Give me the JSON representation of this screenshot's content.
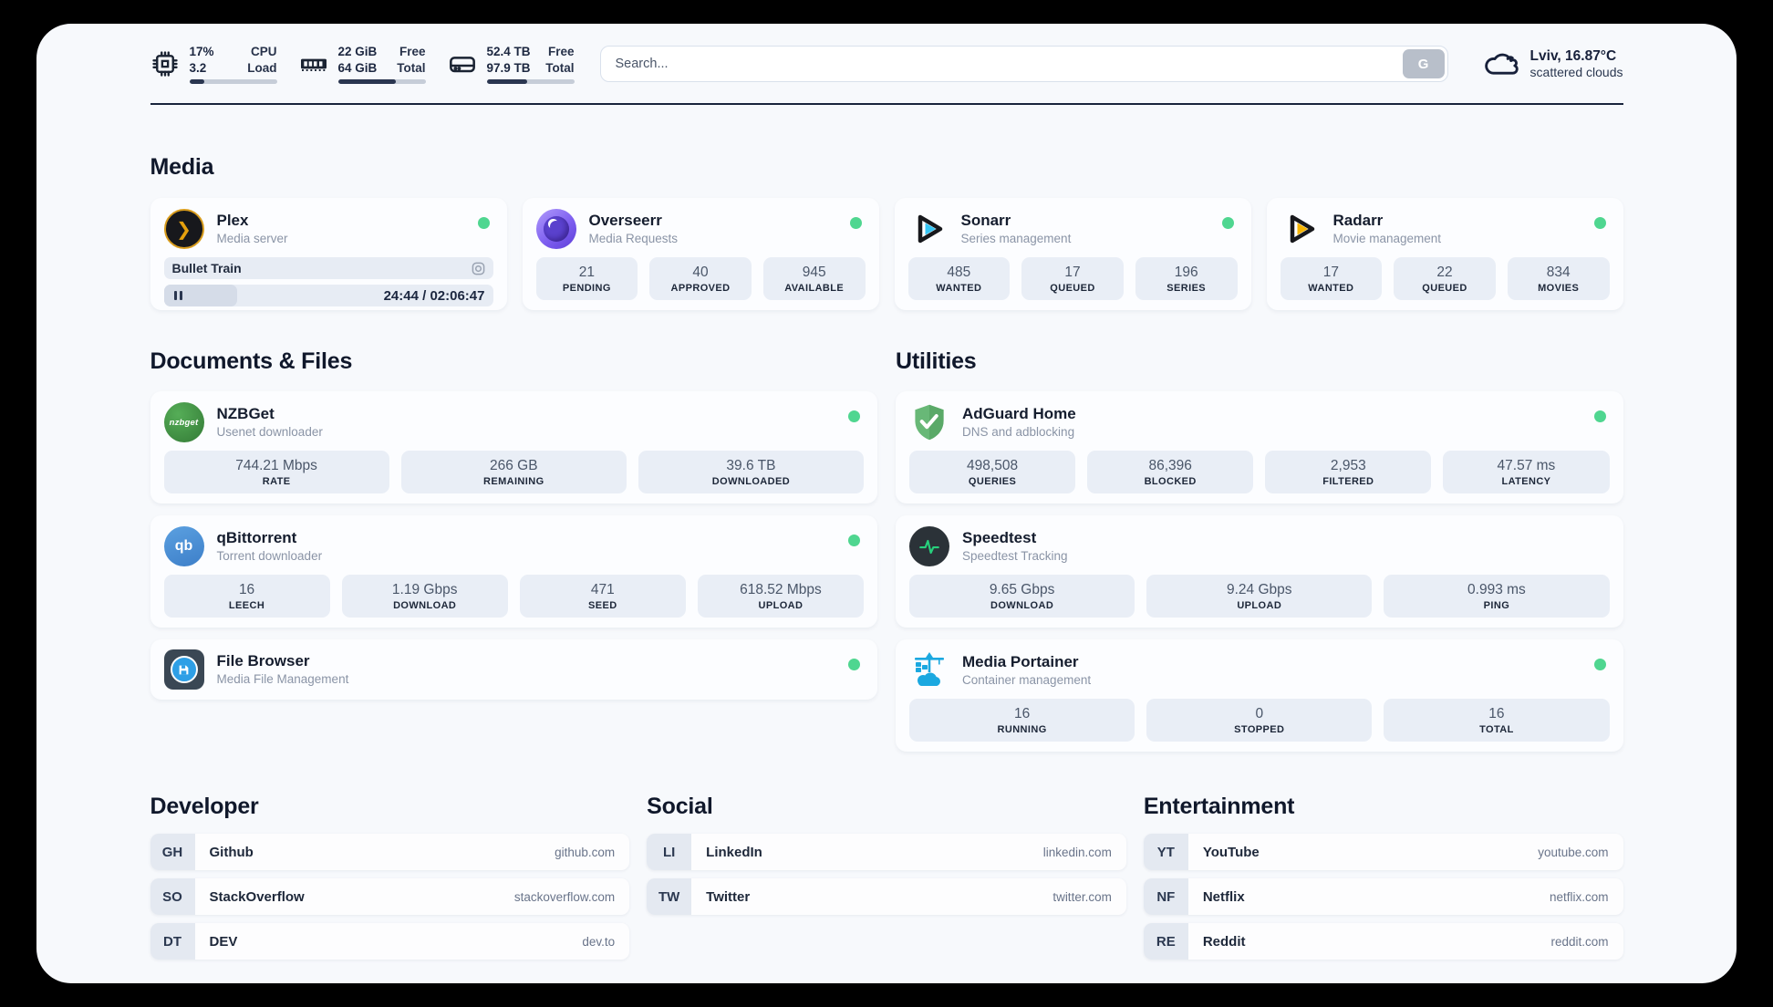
{
  "header": {
    "stats": {
      "cpu": {
        "value1": "17%",
        "value2": "3.2",
        "label1": "CPU",
        "label2": "Load",
        "progress": 17
      },
      "memory": {
        "value1": "22 GiB",
        "value2": "64 GiB",
        "label1": "Free",
        "label2": "Total",
        "progress": 66
      },
      "storage": {
        "value1": "52.4 TB",
        "value2": "97.9 TB",
        "label1": "Free",
        "label2": "Total",
        "progress": 46
      }
    },
    "search": {
      "placeholder": "Search...",
      "button_label": "G"
    },
    "weather": {
      "summary": "Lviv, 16.87°C",
      "description": "scattered clouds"
    }
  },
  "sections": {
    "media": {
      "title": "Media"
    },
    "documents": {
      "title": "Documents & Files"
    },
    "utilities": {
      "title": "Utilities"
    },
    "developer": {
      "title": "Developer"
    },
    "social": {
      "title": "Social"
    },
    "entertainment": {
      "title": "Entertainment"
    }
  },
  "apps": {
    "plex": {
      "name": "Plex",
      "subtitle": "Media server",
      "now_playing": "Bullet Train",
      "time": "24:44 / 02:06:47"
    },
    "overseerr": {
      "name": "Overseerr",
      "subtitle": "Media Requests",
      "stats": [
        {
          "value": "21",
          "label": "PENDING"
        },
        {
          "value": "40",
          "label": "APPROVED"
        },
        {
          "value": "945",
          "label": "AVAILABLE"
        }
      ]
    },
    "sonarr": {
      "name": "Sonarr",
      "subtitle": "Series management",
      "stats": [
        {
          "value": "485",
          "label": "WANTED"
        },
        {
          "value": "17",
          "label": "QUEUED"
        },
        {
          "value": "196",
          "label": "SERIES"
        }
      ]
    },
    "radarr": {
      "name": "Radarr",
      "subtitle": "Movie management",
      "stats": [
        {
          "value": "17",
          "label": "WANTED"
        },
        {
          "value": "22",
          "label": "QUEUED"
        },
        {
          "value": "834",
          "label": "MOVIES"
        }
      ]
    },
    "nzbget": {
      "name": "NZBGet",
      "subtitle": "Usenet downloader",
      "icon_text": "nzbget",
      "stats": [
        {
          "value": "744.21 Mbps",
          "label": "RATE"
        },
        {
          "value": "266 GB",
          "label": "REMAINING"
        },
        {
          "value": "39.6 TB",
          "label": "DOWNLOADED"
        }
      ]
    },
    "qbittorrent": {
      "name": "qBittorrent",
      "subtitle": "Torrent downloader",
      "icon_text": "qb",
      "stats": [
        {
          "value": "16",
          "label": "LEECH"
        },
        {
          "value": "1.19 Gbps",
          "label": "DOWNLOAD"
        },
        {
          "value": "471",
          "label": "SEED"
        },
        {
          "value": "618.52 Mbps",
          "label": "UPLOAD"
        }
      ]
    },
    "filebrowser": {
      "name": "File Browser",
      "subtitle": "Media File Management"
    },
    "adguard": {
      "name": "AdGuard Home",
      "subtitle": "DNS and adblocking",
      "stats": [
        {
          "value": "498,508",
          "label": "QUERIES"
        },
        {
          "value": "86,396",
          "label": "BLOCKED"
        },
        {
          "value": "2,953",
          "label": "FILTERED"
        },
        {
          "value": "47.57 ms",
          "label": "LATENCY"
        }
      ]
    },
    "speedtest": {
      "name": "Speedtest",
      "subtitle": "Speedtest Tracking",
      "stats": [
        {
          "value": "9.65 Gbps",
          "label": "DOWNLOAD"
        },
        {
          "value": "9.24 Gbps",
          "label": "UPLOAD"
        },
        {
          "value": "0.993 ms",
          "label": "PING"
        }
      ]
    },
    "portainer": {
      "name": "Media Portainer",
      "subtitle": "Container management",
      "stats": [
        {
          "value": "16",
          "label": "RUNNING"
        },
        {
          "value": "0",
          "label": "STOPPED"
        },
        {
          "value": "16",
          "label": "TOTAL"
        }
      ]
    }
  },
  "bookmarks": {
    "developer": [
      {
        "abbr": "GH",
        "name": "Github",
        "url": "github.com"
      },
      {
        "abbr": "SO",
        "name": "StackOverflow",
        "url": "stackoverflow.com"
      },
      {
        "abbr": "DT",
        "name": "DEV",
        "url": "dev.to"
      }
    ],
    "social": [
      {
        "abbr": "LI",
        "name": "LinkedIn",
        "url": "linkedin.com"
      },
      {
        "abbr": "TW",
        "name": "Twitter",
        "url": "twitter.com"
      }
    ],
    "entertainment": [
      {
        "abbr": "YT",
        "name": "YouTube",
        "url": "youtube.com"
      },
      {
        "abbr": "NF",
        "name": "Netflix",
        "url": "netflix.com"
      },
      {
        "abbr": "RE",
        "name": "Reddit",
        "url": "reddit.com"
      }
    ]
  },
  "colors": {
    "status_online": "#4fd690",
    "plex_accent": "#e5a00d",
    "sonarr_accent": "#35c5f4",
    "radarr_accent": "#f7b500"
  }
}
